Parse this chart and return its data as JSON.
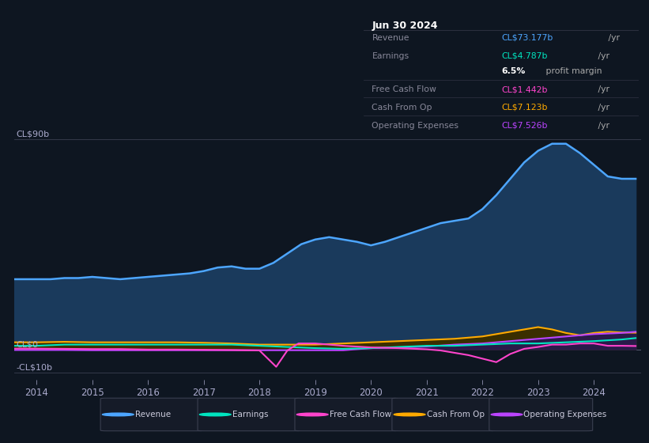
{
  "background_color": "#0e1621",
  "plot_bg_color": "#0e1621",
  "title_box_bg": "#0a0e17",
  "title_box_border": "#2a2f3e",
  "title_box_date": "Jun 30 2024",
  "title_box_rows": [
    {
      "label": "Revenue",
      "value": "CL$73.177b",
      "value_color": "#4da6ff",
      "suffix": " /yr",
      "bold_val": false,
      "sep_above": true
    },
    {
      "label": "Earnings",
      "value": "CL$4.787b",
      "value_color": "#00e5c0",
      "suffix": " /yr",
      "bold_val": false,
      "sep_above": false
    },
    {
      "label": "",
      "value": "6.5%",
      "value_color": "#ffffff",
      "suffix": " profit margin",
      "bold_val": true,
      "sep_above": false
    },
    {
      "label": "Free Cash Flow",
      "value": "CL$1.442b",
      "value_color": "#ff44cc",
      "suffix": " /yr",
      "bold_val": false,
      "sep_above": true
    },
    {
      "label": "Cash From Op",
      "value": "CL$7.123b",
      "value_color": "#ffaa00",
      "suffix": " /yr",
      "bold_val": false,
      "sep_above": true
    },
    {
      "label": "Operating Expenses",
      "value": "CL$7.526b",
      "value_color": "#bb44ff",
      "suffix": " /yr",
      "bold_val": false,
      "sep_above": true
    }
  ],
  "ylabel_top": "CL$90b",
  "ylabel_zero": "CL$0",
  "ylabel_bottom": "-CL$10b",
  "ylim": [
    -13,
    97
  ],
  "xlim": [
    2013.6,
    2024.85
  ],
  "xticks": [
    2014,
    2015,
    2016,
    2017,
    2018,
    2019,
    2020,
    2021,
    2022,
    2023,
    2024
  ],
  "revenue_color": "#4da6ff",
  "revenue_fill_color": "#1a3a5c",
  "earnings_color": "#00e5c0",
  "fcf_color": "#ff44cc",
  "cashfromop_color": "#ffaa00",
  "cashfromop_fill_color": "#3a2e00",
  "opex_color": "#bb44ff",
  "opex_fill_color": "#2a1a4a",
  "legend": [
    {
      "label": "Revenue",
      "color": "#4da6ff"
    },
    {
      "label": "Earnings",
      "color": "#00e5c0"
    },
    {
      "label": "Free Cash Flow",
      "color": "#ff44cc"
    },
    {
      "label": "Cash From Op",
      "color": "#ffaa00"
    },
    {
      "label": "Operating Expenses",
      "color": "#bb44ff"
    }
  ],
  "revenue_x": [
    2013.6,
    2014.0,
    2014.25,
    2014.5,
    2014.75,
    2015.0,
    2015.25,
    2015.5,
    2015.75,
    2016.0,
    2016.25,
    2016.5,
    2016.75,
    2017.0,
    2017.25,
    2017.5,
    2017.75,
    2018.0,
    2018.25,
    2018.5,
    2018.75,
    2019.0,
    2019.25,
    2019.5,
    2019.75,
    2020.0,
    2020.25,
    2020.5,
    2020.75,
    2021.0,
    2021.25,
    2021.5,
    2021.75,
    2022.0,
    2022.25,
    2022.5,
    2022.75,
    2023.0,
    2023.25,
    2023.5,
    2023.75,
    2024.0,
    2024.25,
    2024.5,
    2024.75
  ],
  "revenue_y": [
    30,
    30,
    30,
    30.5,
    30.5,
    31,
    30.5,
    30,
    30.5,
    31,
    31.5,
    32,
    32.5,
    33.5,
    35,
    35.5,
    34.5,
    34.5,
    37,
    41,
    45,
    47,
    48,
    47,
    46,
    44.5,
    46,
    48,
    50,
    52,
    54,
    55,
    56,
    60,
    66,
    73,
    80,
    85,
    88,
    88,
    84,
    79,
    74,
    73,
    73
  ],
  "earnings_x": [
    2013.6,
    2014.0,
    2014.5,
    2015.0,
    2015.5,
    2016.0,
    2016.5,
    2017.0,
    2017.5,
    2018.0,
    2018.5,
    2019.0,
    2019.5,
    2020.0,
    2020.5,
    2021.0,
    2021.5,
    2022.0,
    2022.5,
    2023.0,
    2023.5,
    2024.0,
    2024.5,
    2024.75
  ],
  "earnings_y": [
    1.5,
    1.5,
    2.0,
    2.0,
    2.0,
    2.0,
    2.0,
    2.0,
    2.0,
    1.5,
    1.0,
    0.5,
    0.2,
    0.5,
    1.0,
    1.5,
    1.5,
    2.0,
    2.5,
    2.5,
    3.0,
    3.5,
    4.2,
    4.8
  ],
  "fcf_x": [
    2013.6,
    2014.0,
    2014.5,
    2015.0,
    2015.5,
    2016.0,
    2016.5,
    2017.0,
    2017.5,
    2018.0,
    2018.3,
    2018.5,
    2018.7,
    2019.0,
    2019.5,
    2020.0,
    2020.5,
    2021.0,
    2021.25,
    2021.5,
    2021.75,
    2022.0,
    2022.25,
    2022.5,
    2022.75,
    2023.0,
    2023.25,
    2023.5,
    2023.75,
    2024.0,
    2024.25,
    2024.5,
    2024.75
  ],
  "fcf_y": [
    0.3,
    0.3,
    0.2,
    0.1,
    0.1,
    -0.1,
    -0.1,
    -0.2,
    -0.3,
    -0.5,
    -7.5,
    -0.5,
    2.5,
    2.5,
    1.5,
    0.8,
    0.5,
    0.0,
    -0.5,
    -1.5,
    -2.5,
    -4.0,
    -5.5,
    -2.0,
    0.2,
    1.0,
    2.0,
    2.0,
    2.5,
    2.5,
    1.5,
    1.5,
    1.4
  ],
  "cashfromop_x": [
    2013.6,
    2014.0,
    2014.5,
    2015.0,
    2015.5,
    2016.0,
    2016.5,
    2017.0,
    2017.5,
    2018.0,
    2018.5,
    2019.0,
    2019.5,
    2020.0,
    2020.5,
    2021.0,
    2021.5,
    2022.0,
    2022.25,
    2022.5,
    2022.75,
    2023.0,
    2023.25,
    2023.5,
    2023.75,
    2024.0,
    2024.25,
    2024.5,
    2024.75
  ],
  "cashfromop_y": [
    3.0,
    3.0,
    3.2,
    3.0,
    3.0,
    3.0,
    3.0,
    2.8,
    2.5,
    2.0,
    2.0,
    2.0,
    2.5,
    3.0,
    3.5,
    4.0,
    4.5,
    5.5,
    6.5,
    7.5,
    8.5,
    9.5,
    8.5,
    7.0,
    6.0,
    7.0,
    7.5,
    7.2,
    7.1
  ],
  "opex_x": [
    2013.6,
    2014.0,
    2014.5,
    2015.0,
    2015.5,
    2016.0,
    2016.5,
    2017.0,
    2017.5,
    2018.0,
    2018.5,
    2019.0,
    2019.5,
    2020.0,
    2020.5,
    2021.0,
    2021.5,
    2022.0,
    2022.5,
    2023.0,
    2023.5,
    2024.0,
    2024.5,
    2024.75
  ],
  "opex_y": [
    -0.3,
    -0.3,
    -0.3,
    -0.4,
    -0.4,
    -0.4,
    -0.4,
    -0.4,
    -0.4,
    -0.4,
    -0.4,
    -0.4,
    -0.4,
    0.5,
    0.8,
    1.2,
    2.0,
    2.5,
    3.5,
    4.5,
    5.5,
    6.5,
    7.0,
    7.5
  ]
}
